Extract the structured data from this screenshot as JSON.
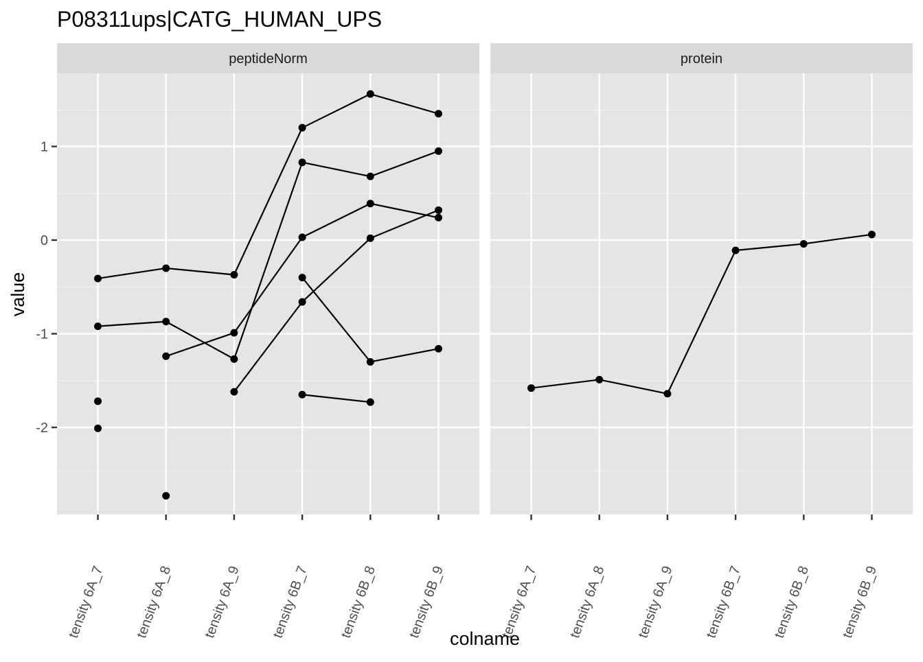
{
  "chart_data": {
    "type": "line",
    "title": "P08311ups|CATG_HUMAN_UPS",
    "xlabel": "colname",
    "ylabel": "value",
    "ylim": [
      -2.93,
      1.78
    ],
    "y_ticks": [
      1,
      0,
      -1,
      -2
    ],
    "y_tick_labels": [
      "1",
      "0",
      "-1",
      "-2"
    ],
    "categories": [
      "tensity 6A_7",
      "tensity 6A_8",
      "tensity 6A_9",
      "tensity 6B_7",
      "tensity 6B_8",
      "tensity 6B_9"
    ],
    "grid": true,
    "legend": "none",
    "facets": [
      {
        "label": "peptideNorm",
        "series": [
          {
            "values": [
              -0.41,
              -0.3,
              -0.37,
              1.2,
              1.56,
              1.35
            ]
          },
          {
            "values": [
              -0.92,
              -0.87,
              -1.27,
              0.83,
              0.68,
              0.95
            ]
          },
          {
            "values": [
              null,
              -1.24,
              -0.99,
              0.03,
              0.39,
              0.24
            ]
          },
          {
            "values": [
              null,
              null,
              -1.62,
              -0.66,
              0.02,
              0.32
            ]
          },
          {
            "values": [
              null,
              null,
              null,
              -0.4,
              -1.3,
              -1.16
            ]
          },
          {
            "values": [
              null,
              null,
              null,
              -1.65,
              -1.73,
              null
            ]
          },
          {
            "values": [
              -1.72,
              null,
              null,
              null,
              null,
              null
            ]
          },
          {
            "values": [
              -2.01,
              null,
              null,
              null,
              null,
              null
            ]
          },
          {
            "values": [
              null,
              -2.73,
              null,
              null,
              null,
              null
            ]
          }
        ]
      },
      {
        "label": "protein",
        "series": [
          {
            "values": [
              -1.58,
              -1.49,
              -1.64,
              -0.11,
              -0.04,
              0.06
            ]
          }
        ]
      }
    ]
  }
}
